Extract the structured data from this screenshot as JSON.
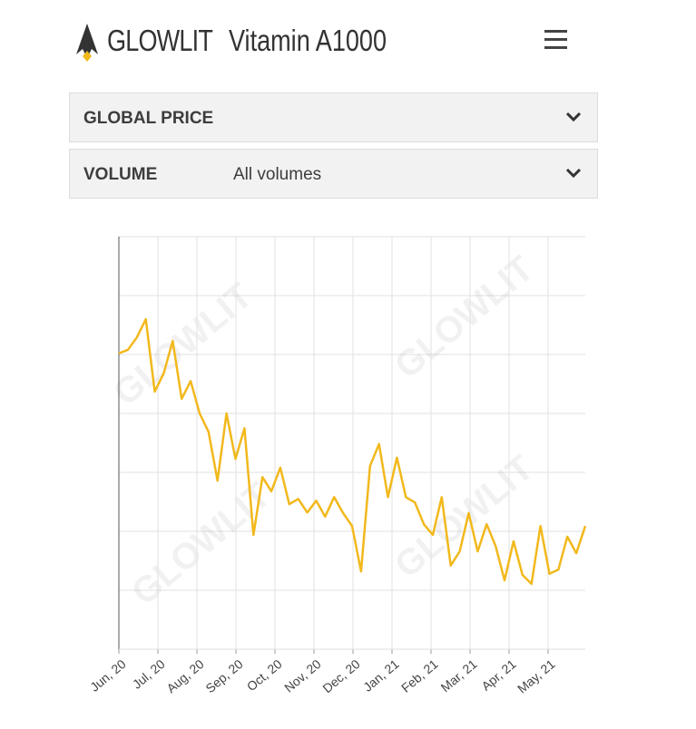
{
  "header": {
    "brand": "GLOWLIT",
    "product": "Vitamin A1000"
  },
  "filters": [
    {
      "label": "GLOBAL PRICE"
    },
    {
      "label": "VOLUME",
      "value": "All volumes"
    }
  ],
  "watermark": "GLOWLIT",
  "chart_data": {
    "type": "line",
    "color": "#f2b81c",
    "grid": true,
    "xlim": [
      0,
      12
    ],
    "xticks": [
      {
        "value": 0,
        "label": "Jun, 20"
      },
      {
        "value": 1,
        "label": "Jul, 20"
      },
      {
        "value": 2,
        "label": "Aug, 20"
      },
      {
        "value": 3,
        "label": "Sep, 20"
      },
      {
        "value": 4,
        "label": "Oct, 20"
      },
      {
        "value": 5,
        "label": "Nov, 20"
      },
      {
        "value": 6,
        "label": "Dec, 20"
      },
      {
        "value": 7,
        "label": "Jan, 21"
      },
      {
        "value": 8,
        "label": "Feb, 21"
      },
      {
        "value": 9,
        "label": "Mar, 21"
      },
      {
        "value": 10,
        "label": "Apr, 21"
      },
      {
        "value": 11,
        "label": "May, 21"
      }
    ],
    "ylim": [
      0,
      7
    ],
    "yticks": [
      0,
      1,
      2,
      3,
      4,
      5,
      6,
      7
    ],
    "values": [
      5.02,
      5.08,
      5.29,
      5.6,
      4.37,
      4.68,
      5.23,
      4.25,
      4.55,
      4.0,
      3.69,
      2.86,
      4.0,
      3.23,
      3.75,
      1.94,
      2.92,
      2.68,
      3.08,
      2.46,
      2.55,
      2.32,
      2.52,
      2.25,
      2.58,
      2.31,
      2.09,
      1.32,
      3.11,
      3.48,
      2.58,
      3.25,
      2.58,
      2.49,
      2.12,
      1.94,
      2.58,
      1.42,
      1.66,
      2.31,
      1.66,
      2.12,
      1.75,
      1.17,
      1.83,
      1.26,
      1.11,
      2.09,
      1.28,
      1.35,
      1.91,
      1.63,
      2.09
    ]
  }
}
